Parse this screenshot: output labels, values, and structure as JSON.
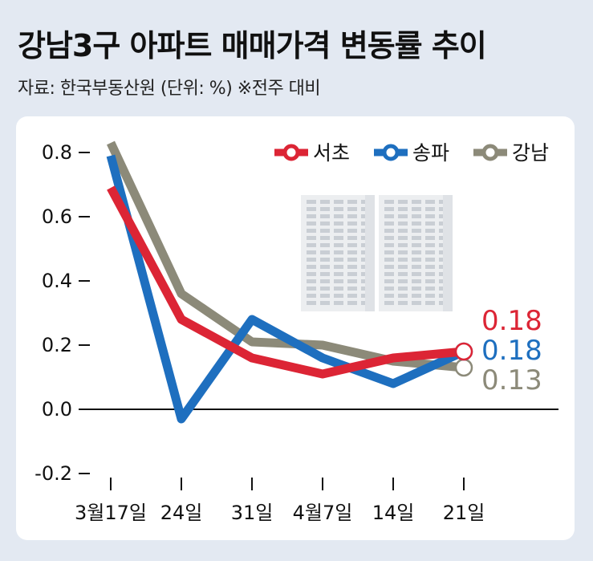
{
  "header": {
    "title": "강남3구 아파트 매매가격 변동률 추이",
    "source": "자료: 한국부동산원 (단위: %) ※전주 대비"
  },
  "chart_data": {
    "type": "line",
    "title": "강남3구 아파트 매매가격 변동률 추이",
    "unit": "%",
    "categories": [
      "3월17일",
      "24일",
      "31일",
      "4월7일",
      "14일",
      "21일"
    ],
    "yticks": [
      "0.8",
      "0.6",
      "0.4",
      "0.2",
      "0.0",
      "-0.2"
    ],
    "ytick_values": [
      0.8,
      0.6,
      0.4,
      0.2,
      0.0,
      -0.2
    ],
    "ylim": [
      -0.2,
      0.8
    ],
    "legend_position": "top-right",
    "series": [
      {
        "name": "강남",
        "color": "#8c8a79",
        "values": [
          0.83,
          0.36,
          0.21,
          0.2,
          0.15,
          0.13
        ],
        "end_label": "0.13"
      },
      {
        "name": "송파",
        "color": "#1e6fbf",
        "values": [
          0.79,
          -0.03,
          0.28,
          0.16,
          0.08,
          0.18
        ],
        "end_label": "0.18"
      },
      {
        "name": "서초",
        "color": "#dc2535",
        "values": [
          0.69,
          0.28,
          0.16,
          0.11,
          0.16,
          0.18
        ],
        "end_label": "0.18"
      }
    ],
    "legend_order": [
      "서초",
      "송파",
      "강남"
    ],
    "end_label_order": [
      "서초",
      "송파",
      "강남"
    ]
  }
}
